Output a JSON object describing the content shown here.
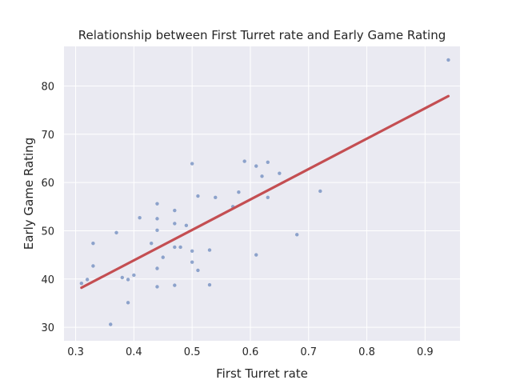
{
  "chart_data": {
    "type": "scatter",
    "title": "Relationship between First Turret rate and Early Game Rating",
    "xlabel": "First Turret rate",
    "ylabel": "Early Game Rating",
    "xlim": [
      0.28,
      0.96
    ],
    "ylim": [
      27.2,
      88.2
    ],
    "xticks": [
      0.3,
      0.4,
      0.5,
      0.6,
      0.7,
      0.8,
      0.9
    ],
    "xtick_labels": [
      "0.3",
      "0.4",
      "0.5",
      "0.6",
      "0.7",
      "0.8",
      "0.9"
    ],
    "yticks": [
      30,
      40,
      50,
      60,
      70,
      80
    ],
    "ytick_labels": [
      "30",
      "40",
      "50",
      "60",
      "70",
      "80"
    ],
    "grid": true,
    "colors": {
      "background": "#EAEAF2",
      "grid": "#FFFFFF",
      "points": "#4C72B0",
      "fit_line": "#C44E52"
    },
    "series": [
      {
        "type": "scatter",
        "points": [
          [
            0.31,
            39.1
          ],
          [
            0.32,
            39.9
          ],
          [
            0.33,
            47.4
          ],
          [
            0.33,
            42.7
          ],
          [
            0.36,
            30.6
          ],
          [
            0.37,
            49.6
          ],
          [
            0.38,
            40.3
          ],
          [
            0.39,
            39.9
          ],
          [
            0.39,
            35.1
          ],
          [
            0.4,
            40.8
          ],
          [
            0.41,
            52.7
          ],
          [
            0.43,
            47.4
          ],
          [
            0.44,
            55.6
          ],
          [
            0.44,
            52.5
          ],
          [
            0.44,
            50.1
          ],
          [
            0.44,
            42.2
          ],
          [
            0.44,
            38.4
          ],
          [
            0.45,
            44.5
          ],
          [
            0.47,
            54.2
          ],
          [
            0.47,
            51.5
          ],
          [
            0.47,
            46.6
          ],
          [
            0.47,
            38.7
          ],
          [
            0.48,
            46.6
          ],
          [
            0.49,
            51.1
          ],
          [
            0.5,
            63.9
          ],
          [
            0.5,
            45.8
          ],
          [
            0.5,
            43.5
          ],
          [
            0.51,
            57.2
          ],
          [
            0.51,
            41.8
          ],
          [
            0.53,
            46.0
          ],
          [
            0.53,
            38.8
          ],
          [
            0.54,
            56.9
          ],
          [
            0.57,
            55.0
          ],
          [
            0.58,
            58.0
          ],
          [
            0.59,
            64.4
          ],
          [
            0.61,
            63.4
          ],
          [
            0.61,
            45.0
          ],
          [
            0.62,
            61.3
          ],
          [
            0.63,
            64.2
          ],
          [
            0.63,
            56.9
          ],
          [
            0.65,
            61.9
          ],
          [
            0.68,
            49.2
          ],
          [
            0.72,
            58.2
          ],
          [
            0.94,
            85.4
          ]
        ]
      },
      {
        "type": "line",
        "points": [
          [
            0.31,
            38.2
          ],
          [
            0.94,
            77.9
          ]
        ]
      }
    ]
  }
}
